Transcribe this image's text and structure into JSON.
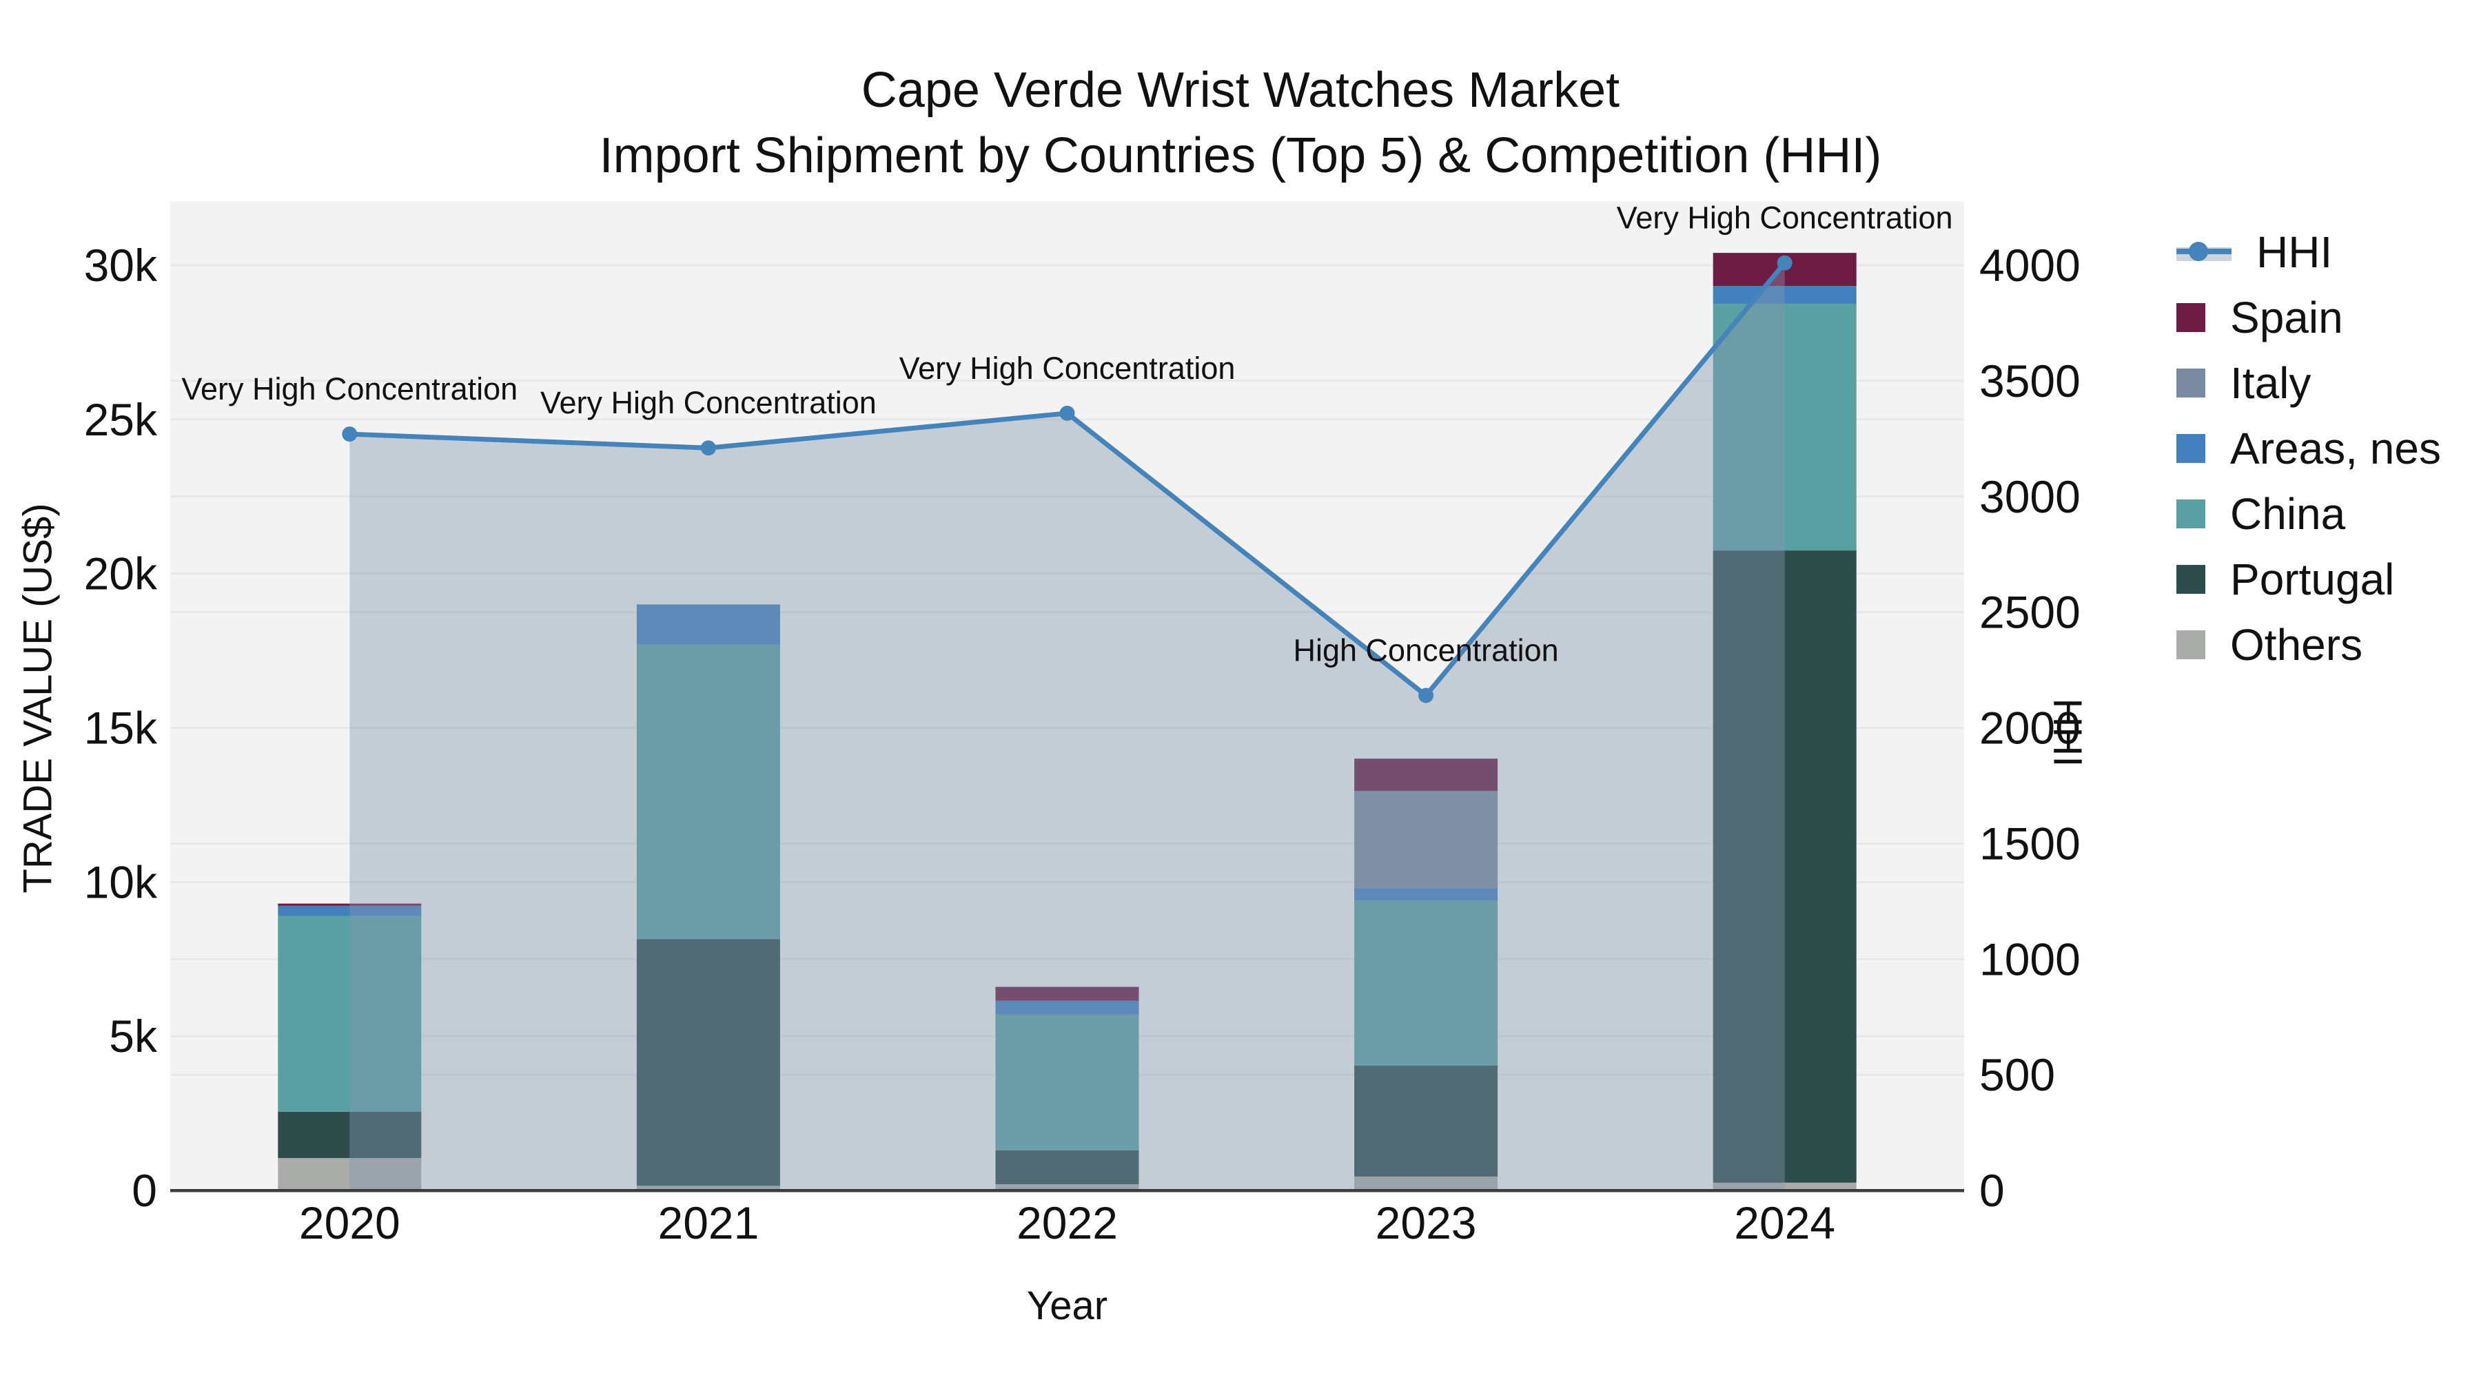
{
  "title": {
    "line1": "Cape Verde Wrist Watches Market",
    "line2": "Import Shipment by Countries (Top 5) & Competition (HHI)"
  },
  "axes": {
    "x": {
      "title": "Year"
    },
    "y_left": {
      "title": "TRADE VALUE (US$)",
      "tick_labels": [
        "0",
        "5k",
        "10k",
        "15k",
        "20k",
        "25k",
        "30k"
      ],
      "tick_values": [
        0,
        5000,
        10000,
        15000,
        20000,
        25000,
        30000
      ],
      "range": [
        0,
        30000
      ]
    },
    "y_right": {
      "title": "HHI",
      "tick_labels": [
        "0",
        "500",
        "1000",
        "1500",
        "2000",
        "2500",
        "3000",
        "3500",
        "4000"
      ],
      "tick_values": [
        0,
        500,
        1000,
        1500,
        2000,
        2500,
        3000,
        3500,
        4000
      ],
      "range": [
        0,
        4000
      ]
    }
  },
  "chart_data": {
    "type": "bar",
    "subtype": "stacked bars (left axis) + line with markers and area fill (right axis)",
    "categories": [
      "2020",
      "2021",
      "2022",
      "2023",
      "2024"
    ],
    "series": [
      {
        "name": "Others",
        "color": "#a9aca8",
        "values": [
          1050,
          150,
          200,
          450,
          250
        ]
      },
      {
        "name": "Portugal",
        "color": "#2e4c4a",
        "values": [
          1500,
          8000,
          1100,
          3600,
          20500
        ]
      },
      {
        "name": "China",
        "color": "#5aa0a2",
        "values": [
          6350,
          9550,
          4400,
          5350,
          8000
        ]
      },
      {
        "name": "Areas, nes",
        "color": "#4180bd",
        "values": [
          330,
          1300,
          450,
          400,
          580
        ]
      },
      {
        "name": "Italy",
        "color": "#7c8aa0",
        "values": [
          0,
          0,
          0,
          3150,
          0
        ]
      },
      {
        "name": "Spain",
        "color": "#6c1b42",
        "values": [
          70,
          0,
          450,
          1050,
          1070
        ]
      }
    ],
    "bar_totals": [
      9300,
      19000,
      6600,
      14000,
      30400
    ],
    "hhi": {
      "name": "HHI",
      "values": [
        3270,
        3210,
        3360,
        2140,
        4010
      ],
      "line_color": "#4484bb",
      "area_fill": "rgba(130,150,175,0.42)",
      "annotations": [
        "Very High Concentration",
        "Very High Concentration",
        "Very High Concentration",
        "High Concentration",
        "Very High Concentration"
      ]
    },
    "title": "Cape Verde Wrist Watches Market — Import Shipment by Countries (Top 5) & Competition (HHI)",
    "xlabel": "Year",
    "ylabel_left": "TRADE VALUE (US$)",
    "ylabel_right": "HHI",
    "grid": true,
    "legend_position": "right"
  },
  "legend": {
    "items": [
      {
        "label": "HHI",
        "type": "line",
        "color": "#4484bb"
      },
      {
        "label": "Spain",
        "type": "square",
        "color": "#6c1b42"
      },
      {
        "label": "Italy",
        "type": "square",
        "color": "#7c8aa0"
      },
      {
        "label": "Areas, nes",
        "type": "square",
        "color": "#4180bd"
      },
      {
        "label": "China",
        "type": "square",
        "color": "#5aa0a2"
      },
      {
        "label": "Portugal",
        "type": "square",
        "color": "#2e4c4a"
      },
      {
        "label": "Others",
        "type": "square",
        "color": "#a9aca8"
      }
    ]
  },
  "colors": {
    "plot_background": "#f3f3f3",
    "gridline": "#e4e6e8",
    "axis_line": "#3c3c3c",
    "text": "#111111"
  }
}
